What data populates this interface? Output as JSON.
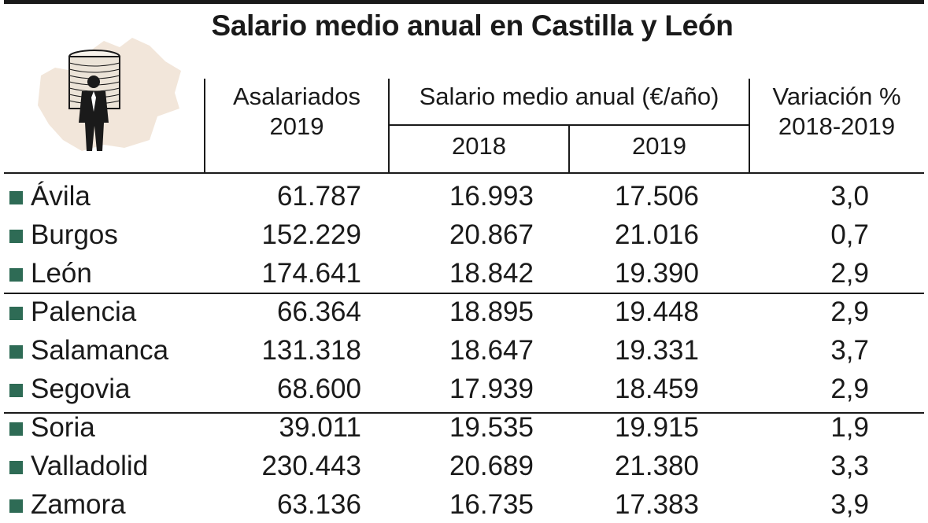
{
  "title": "Salario medio anual en Castilla y León",
  "colors": {
    "marker": "#2e6b55",
    "map": "#f2e6da",
    "text": "#1a1a1a"
  },
  "headers": {
    "asalariados_l1": "Asalariados",
    "asalariados_l2": "2019",
    "salario": "Salario medio anual (€/año)",
    "y2018": "2018",
    "y2019": "2019",
    "variacion_l1": "Variación %",
    "variacion_l2": "2018-2019"
  },
  "chart_data": {
    "type": "table",
    "title": "Salario medio anual en Castilla y León",
    "columns": [
      "Asalariados 2019",
      "Salario medio anual (€/año) 2018",
      "Salario medio anual (€/año) 2019",
      "Variación % 2018-2019"
    ],
    "rows": [
      {
        "province": "Ávila",
        "asalariados": "61.787",
        "s2018": "16.993",
        "s2019": "17.506",
        "variacion": "3,0"
      },
      {
        "province": "Burgos",
        "asalariados": "152.229",
        "s2018": "20.867",
        "s2019": "21.016",
        "variacion": "0,7"
      },
      {
        "province": "León",
        "asalariados": "174.641",
        "s2018": "18.842",
        "s2019": "19.390",
        "variacion": "2,9"
      },
      {
        "province": "Palencia",
        "asalariados": "66.364",
        "s2018": "18.895",
        "s2019": "19.448",
        "variacion": "2,9"
      },
      {
        "province": "Salamanca",
        "asalariados": "131.318",
        "s2018": "18.647",
        "s2019": "19.331",
        "variacion": "3,7"
      },
      {
        "province": "Segovia",
        "asalariados": "68.600",
        "s2018": "17.939",
        "s2019": "18.459",
        "variacion": "2,9"
      },
      {
        "province": "Soria",
        "asalariados": "39.011",
        "s2018": "19.535",
        "s2019": "19.915",
        "variacion": "1,9"
      },
      {
        "province": "Valladolid",
        "asalariados": "230.443",
        "s2018": "20.689",
        "s2019": "21.380",
        "variacion": "3,3"
      },
      {
        "province": "Zamora",
        "asalariados": "63.136",
        "s2018": "16.735",
        "s2019": "17.383",
        "variacion": "3,9"
      }
    ]
  }
}
